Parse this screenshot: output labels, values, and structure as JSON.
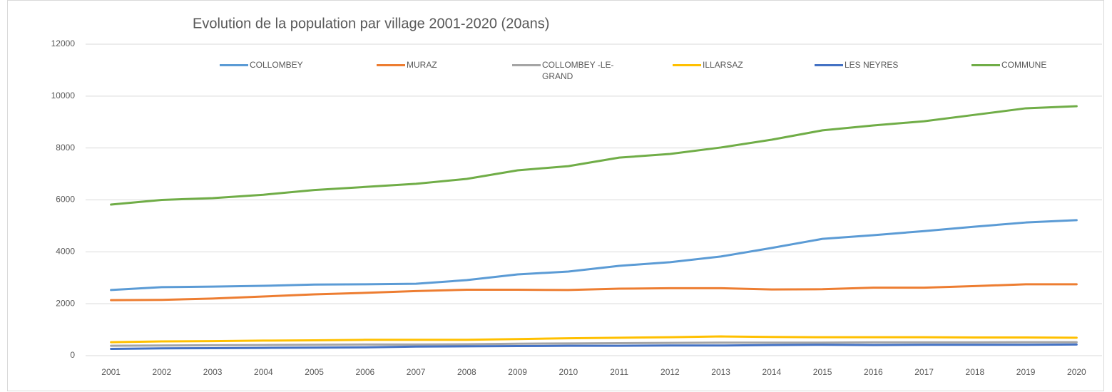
{
  "chart_data": {
    "type": "line",
    "title": "Evolution de la population par village 2001-2020 (20ans)",
    "categories": [
      "2001",
      "2002",
      "2003",
      "2004",
      "2005",
      "2006",
      "2007",
      "2008",
      "2009",
      "2010",
      "2011",
      "2012",
      "2013",
      "2014",
      "2015",
      "2016",
      "2017",
      "2018",
      "2019",
      "2020"
    ],
    "series": [
      {
        "name": "COLLOMBEY",
        "color": "#5b9bd5",
        "values": [
          2530,
          2640,
          2660,
          2690,
          2740,
          2750,
          2770,
          2910,
          3130,
          3240,
          3460,
          3600,
          3820,
          4150,
          4500,
          4640,
          4800,
          4970,
          5130,
          5220
        ]
      },
      {
        "name": "MURAZ",
        "color": "#ed7d31",
        "values": [
          2140,
          2150,
          2200,
          2280,
          2360,
          2420,
          2490,
          2540,
          2540,
          2530,
          2580,
          2600,
          2600,
          2550,
          2560,
          2620,
          2620,
          2680,
          2750,
          2750
        ]
      },
      {
        "name": "COLLOMBEY -LE-GRAND",
        "color": "#a5a5a5",
        "values": [
          380,
          390,
          400,
          410,
          420,
          430,
          430,
          440,
          460,
          470,
          480,
          490,
          500,
          500,
          500,
          510,
          510,
          510,
          520,
          520
        ]
      },
      {
        "name": "ILLARSAZ",
        "color": "#ffc000",
        "values": [
          520,
          550,
          560,
          580,
          590,
          610,
          610,
          610,
          640,
          670,
          690,
          710,
          740,
          720,
          710,
          710,
          710,
          700,
          700,
          690
        ]
      },
      {
        "name": "LES NEYRES",
        "color": "#4472c4",
        "values": [
          260,
          280,
          290,
          300,
          310,
          320,
          350,
          360,
          370,
          380,
          380,
          390,
          390,
          410,
          420,
          410,
          420,
          420,
          420,
          430
        ]
      },
      {
        "name": "COMMUNE",
        "color": "#70ad47",
        "values": [
          5820,
          6000,
          6070,
          6200,
          6380,
          6500,
          6620,
          6810,
          7140,
          7300,
          7630,
          7770,
          8020,
          8320,
          8680,
          8870,
          9030,
          9280,
          9530,
          9610
        ]
      }
    ],
    "ylim": [
      0,
      12000
    ],
    "yticks": [
      0,
      2000,
      4000,
      6000,
      8000,
      10000,
      12000
    ],
    "grid": true
  }
}
